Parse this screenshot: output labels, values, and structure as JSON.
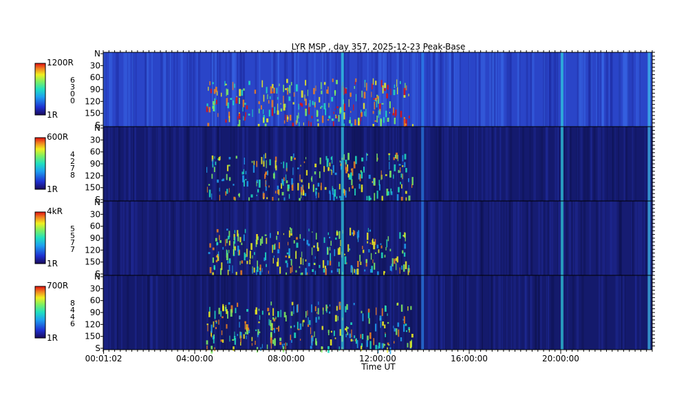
{
  "chart_data": {
    "type": "heatmap",
    "title": "LYR MSP , day 357, 2025-12-23 Peak-Base",
    "xlabel": "Time UT",
    "x_ticks": [
      "00:01:02",
      "04:00:00",
      "08:00:00",
      "12:00:00",
      "16:00:00",
      "20:00:00"
    ],
    "x_range_hours": [
      0.017,
      24
    ],
    "panels": [
      {
        "colorbar_max": "1200R",
        "colorbar_min": "1R",
        "colorbar_side_label": [
          "6",
          "3",
          "0",
          "0"
        ],
        "y_ticks": [
          "N",
          "30",
          "60",
          "90",
          "120",
          "150",
          "S"
        ],
        "background": "#2a45c8",
        "bright": true
      },
      {
        "colorbar_max": "600R",
        "colorbar_min": "1R",
        "colorbar_side_label": [
          "4",
          "2",
          "7",
          "8"
        ],
        "y_ticks": [
          "N",
          "30",
          "60",
          "90",
          "120",
          "150",
          "S"
        ],
        "background": "#141a6e",
        "bright": false
      },
      {
        "colorbar_max": "4kR",
        "colorbar_min": "1R",
        "colorbar_side_label": [
          "5",
          "5",
          "7",
          "7"
        ],
        "y_ticks": [
          "N",
          "30",
          "60",
          "90",
          "120",
          "150",
          "S"
        ],
        "background": "#161c72",
        "bright": false
      },
      {
        "colorbar_max": "700R",
        "colorbar_min": "1R",
        "colorbar_side_label": [
          "8",
          "4",
          "4",
          "6"
        ],
        "y_ticks": [
          "N",
          "30",
          "60",
          "90",
          "120",
          "150",
          "S"
        ],
        "background": "#141a6c",
        "bright": false
      }
    ],
    "colormap": [
      "#1a0a5a",
      "#1e2fd0",
      "#1ea0f0",
      "#20e0c0",
      "#80f060",
      "#f0f020",
      "#f08020",
      "#e01010"
    ]
  }
}
